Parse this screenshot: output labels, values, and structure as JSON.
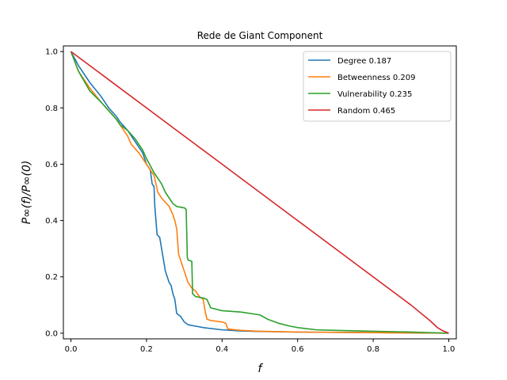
{
  "chart_data": {
    "type": "line",
    "title": "Rede de Giant Component",
    "xlabel": "f",
    "ylabel": "P∞(f)/P∞(0)",
    "xlim": [
      -0.02,
      1.02
    ],
    "ylim": [
      -0.02,
      1.02
    ],
    "xticks": [
      0.0,
      0.2,
      0.4,
      0.6,
      0.8,
      1.0
    ],
    "xtick_labels": [
      "0.0",
      "0.2",
      "0.4",
      "0.6",
      "0.8",
      "1.0"
    ],
    "yticks": [
      0.0,
      0.2,
      0.4,
      0.6,
      0.8,
      1.0
    ],
    "ytick_labels": [
      "0.0",
      "0.2",
      "0.4",
      "0.6",
      "0.8",
      "1.0"
    ],
    "grid": false,
    "legend_position": "top-right",
    "series": [
      {
        "name": "Degree 0.187",
        "color": "#1f77b4",
        "points": [
          [
            0.0,
            1.0
          ],
          [
            0.02,
            0.95
          ],
          [
            0.05,
            0.89
          ],
          [
            0.08,
            0.84
          ],
          [
            0.1,
            0.8
          ],
          [
            0.12,
            0.77
          ],
          [
            0.13,
            0.75
          ],
          [
            0.15,
            0.72
          ],
          [
            0.17,
            0.68
          ],
          [
            0.19,
            0.64
          ],
          [
            0.2,
            0.6
          ],
          [
            0.21,
            0.58
          ],
          [
            0.215,
            0.53
          ],
          [
            0.22,
            0.52
          ],
          [
            0.222,
            0.45
          ],
          [
            0.225,
            0.4
          ],
          [
            0.228,
            0.35
          ],
          [
            0.235,
            0.34
          ],
          [
            0.24,
            0.3
          ],
          [
            0.25,
            0.22
          ],
          [
            0.26,
            0.18
          ],
          [
            0.265,
            0.17
          ],
          [
            0.27,
            0.14
          ],
          [
            0.275,
            0.12
          ],
          [
            0.28,
            0.07
          ],
          [
            0.285,
            0.065
          ],
          [
            0.29,
            0.06
          ],
          [
            0.3,
            0.04
          ],
          [
            0.31,
            0.03
          ],
          [
            0.33,
            0.025
          ],
          [
            0.35,
            0.02
          ],
          [
            0.4,
            0.012
          ],
          [
            0.45,
            0.008
          ],
          [
            0.5,
            0.006
          ],
          [
            0.6,
            0.004
          ],
          [
            0.8,
            0.002
          ],
          [
            1.0,
            0.0
          ]
        ]
      },
      {
        "name": "Betweenness 0.209",
        "color": "#ff7f0e",
        "points": [
          [
            0.0,
            1.0
          ],
          [
            0.02,
            0.93
          ],
          [
            0.05,
            0.87
          ],
          [
            0.08,
            0.82
          ],
          [
            0.1,
            0.79
          ],
          [
            0.12,
            0.76
          ],
          [
            0.14,
            0.72
          ],
          [
            0.15,
            0.7
          ],
          [
            0.16,
            0.67
          ],
          [
            0.18,
            0.64
          ],
          [
            0.2,
            0.6
          ],
          [
            0.21,
            0.58
          ],
          [
            0.22,
            0.56
          ],
          [
            0.23,
            0.5
          ],
          [
            0.24,
            0.48
          ],
          [
            0.26,
            0.45
          ],
          [
            0.27,
            0.42
          ],
          [
            0.275,
            0.4
          ],
          [
            0.28,
            0.37
          ],
          [
            0.285,
            0.28
          ],
          [
            0.29,
            0.26
          ],
          [
            0.3,
            0.22
          ],
          [
            0.31,
            0.18
          ],
          [
            0.32,
            0.16
          ],
          [
            0.33,
            0.15
          ],
          [
            0.34,
            0.13
          ],
          [
            0.35,
            0.12
          ],
          [
            0.355,
            0.08
          ],
          [
            0.36,
            0.05
          ],
          [
            0.37,
            0.045
          ],
          [
            0.4,
            0.04
          ],
          [
            0.41,
            0.035
          ],
          [
            0.415,
            0.015
          ],
          [
            0.45,
            0.01
          ],
          [
            0.5,
            0.007
          ],
          [
            0.6,
            0.004
          ],
          [
            0.8,
            0.002
          ],
          [
            1.0,
            0.0
          ]
        ]
      },
      {
        "name": "Vulnerability 0.235",
        "color": "#2ca02c",
        "points": [
          [
            0.0,
            1.0
          ],
          [
            0.02,
            0.93
          ],
          [
            0.05,
            0.86
          ],
          [
            0.08,
            0.82
          ],
          [
            0.1,
            0.79
          ],
          [
            0.12,
            0.76
          ],
          [
            0.13,
            0.74
          ],
          [
            0.15,
            0.72
          ],
          [
            0.17,
            0.69
          ],
          [
            0.19,
            0.65
          ],
          [
            0.2,
            0.62
          ],
          [
            0.22,
            0.57
          ],
          [
            0.24,
            0.53
          ],
          [
            0.25,
            0.5
          ],
          [
            0.26,
            0.48
          ],
          [
            0.27,
            0.46
          ],
          [
            0.28,
            0.45
          ],
          [
            0.3,
            0.445
          ],
          [
            0.305,
            0.44
          ],
          [
            0.308,
            0.27
          ],
          [
            0.31,
            0.26
          ],
          [
            0.32,
            0.255
          ],
          [
            0.322,
            0.14
          ],
          [
            0.33,
            0.13
          ],
          [
            0.35,
            0.125
          ],
          [
            0.36,
            0.12
          ],
          [
            0.37,
            0.09
          ],
          [
            0.4,
            0.08
          ],
          [
            0.45,
            0.075
          ],
          [
            0.5,
            0.065
          ],
          [
            0.52,
            0.05
          ],
          [
            0.55,
            0.035
          ],
          [
            0.58,
            0.025
          ],
          [
            0.6,
            0.02
          ],
          [
            0.65,
            0.012
          ],
          [
            0.7,
            0.01
          ],
          [
            0.8,
            0.007
          ],
          [
            0.9,
            0.004
          ],
          [
            1.0,
            0.0
          ]
        ]
      },
      {
        "name": "Random 0.465",
        "color": "#d62728",
        "points": [
          [
            0.0,
            1.0
          ],
          [
            0.1,
            0.9
          ],
          [
            0.2,
            0.8
          ],
          [
            0.3,
            0.7
          ],
          [
            0.4,
            0.6
          ],
          [
            0.5,
            0.5
          ],
          [
            0.6,
            0.4
          ],
          [
            0.7,
            0.3
          ],
          [
            0.8,
            0.2
          ],
          [
            0.9,
            0.1
          ],
          [
            0.95,
            0.045
          ],
          [
            0.97,
            0.02
          ],
          [
            0.985,
            0.008
          ],
          [
            1.0,
            0.0
          ]
        ]
      }
    ]
  }
}
